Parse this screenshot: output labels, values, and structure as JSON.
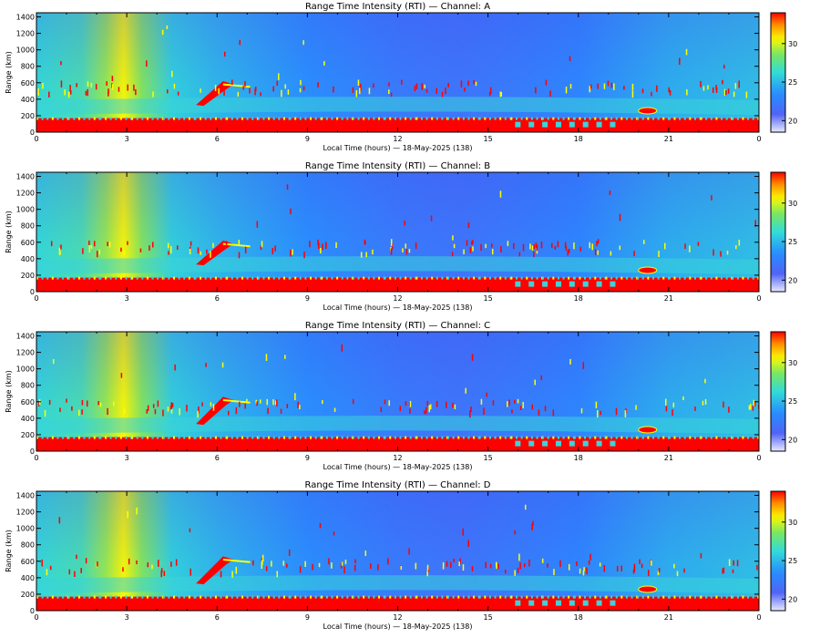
{
  "chart_data": [
    {
      "type": "heatmap",
      "title": "Range Time Intensity (RTI) — Channel: A",
      "xlabel": "Local Time (hours) — 18-May-2025 (138)",
      "ylabel": "Range (km)",
      "xticks": [
        "0",
        "3",
        "6",
        "9",
        "12",
        "15",
        "18",
        "21",
        "0"
      ],
      "yticks": [
        "0",
        "200",
        "400",
        "600",
        "800",
        "1000",
        "1200",
        "1400"
      ],
      "xlim": [
        0,
        24
      ],
      "ylim": [
        0,
        1450
      ],
      "colorbar": {
        "ticks": [
          "20",
          "25",
          "30"
        ],
        "range": [
          18.5,
          34
        ]
      },
      "features": {
        "ground_clutter_top_km": 170,
        "warm_band_hours": [
          2.2,
          3.8
        ],
        "meteor_streak": {
          "start_hour": 5.3,
          "start_km": 330,
          "end_hour": 6.2,
          "end_km": 580
        },
        "hot_spot": {
          "hour": 20.3,
          "km": 260
        }
      }
    },
    {
      "type": "heatmap",
      "title": "Range Time Intensity (RTI) — Channel: B",
      "xlabel": "Local Time (hours) — 18-May-2025 (138)",
      "ylabel": "Range (km)",
      "xticks": [
        "0",
        "3",
        "6",
        "9",
        "12",
        "15",
        "18",
        "21",
        "0"
      ],
      "yticks": [
        "0",
        "200",
        "400",
        "600",
        "800",
        "1000",
        "1200",
        "1400"
      ],
      "xlim": [
        0,
        24
      ],
      "ylim": [
        0,
        1450
      ],
      "colorbar": {
        "ticks": [
          "20",
          "25",
          "30"
        ],
        "range": [
          18.5,
          34
        ]
      },
      "features": {
        "ground_clutter_top_km": 170,
        "warm_band_hours": [
          2.2,
          3.8
        ],
        "meteor_streak": {
          "start_hour": 5.3,
          "start_km": 330,
          "end_hour": 6.2,
          "end_km": 580
        },
        "hot_spot": {
          "hour": 20.3,
          "km": 260
        }
      }
    },
    {
      "type": "heatmap",
      "title": "Range Time Intensity (RTI) — Channel: C",
      "xlabel": "Local Time (hours) — 18-May-2025 (138)",
      "ylabel": "Range (km)",
      "xticks": [
        "0",
        "3",
        "6",
        "9",
        "12",
        "15",
        "18",
        "21",
        "0"
      ],
      "yticks": [
        "0",
        "200",
        "400",
        "600",
        "800",
        "1000",
        "1200",
        "1400"
      ],
      "xlim": [
        0,
        24
      ],
      "ylim": [
        0,
        1450
      ],
      "colorbar": {
        "ticks": [
          "20",
          "25",
          "30"
        ],
        "range": [
          18.5,
          34
        ]
      },
      "features": {
        "ground_clutter_top_km": 170,
        "warm_band_hours": [
          2.2,
          3.8
        ],
        "meteor_streak": {
          "start_hour": 5.3,
          "start_km": 330,
          "end_hour": 6.2,
          "end_km": 620
        },
        "hot_spot": {
          "hour": 20.3,
          "km": 260
        }
      }
    },
    {
      "type": "heatmap",
      "title": "Range Time Intensity (RTI) — Channel: D",
      "xlabel": "Local Time (hours) — 18-May-2025 (138)",
      "ylabel": "Range (km)",
      "xticks": [
        "0",
        "3",
        "6",
        "9",
        "12",
        "15",
        "18",
        "21",
        "0"
      ],
      "yticks": [
        "0",
        "200",
        "400",
        "600",
        "800",
        "1000",
        "1200",
        "1400"
      ],
      "xlim": [
        0,
        24
      ],
      "ylim": [
        0,
        1450
      ],
      "colorbar": {
        "ticks": [
          "20",
          "25",
          "30"
        ],
        "range": [
          18.5,
          34
        ]
      },
      "features": {
        "ground_clutter_top_km": 170,
        "warm_band_hours": [
          2.2,
          3.8
        ],
        "meteor_streak": {
          "start_hour": 5.3,
          "start_km": 330,
          "end_hour": 6.2,
          "end_km": 620
        },
        "hot_spot": {
          "hour": 20.3,
          "km": 260
        }
      }
    }
  ],
  "colors": {
    "background": "#ffffff",
    "axis": "#000000",
    "clutter": "#ff0000",
    "low": "#e8e8ff",
    "mid": "#3ad4d8",
    "high": "#ffff00"
  }
}
